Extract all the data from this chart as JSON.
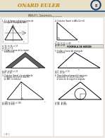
{
  "page_bg": "#f0eeeb",
  "header_bg": "#d4c8a8",
  "header_text_color": "#1a1a1a",
  "title": "ONARD EULER",
  "title_color": "#c8a020",
  "divider_color": "#888888",
  "content_bg": "#ffffff",
  "text_color": "#111111",
  "grid_color": "#cccccc",
  "dark_fill": "#606060",
  "light_fill": "#e0d8c8"
}
